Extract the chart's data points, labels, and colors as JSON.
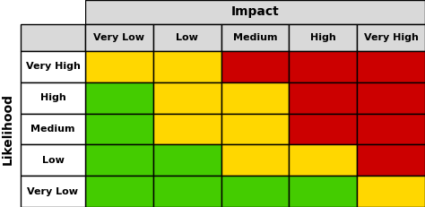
{
  "title": "Impact",
  "col_labels": [
    "Very Low",
    "Low",
    "Medium",
    "High",
    "Very High"
  ],
  "row_labels": [
    "Very High",
    "High",
    "Medium",
    "Low",
    "Very Low"
  ],
  "y_axis_label": "Likelihood",
  "cell_colors": [
    [
      "#FFD700",
      "#FFD700",
      "#CC0000",
      "#CC0000",
      "#CC0000"
    ],
    [
      "#44CC00",
      "#FFD700",
      "#FFD700",
      "#CC0000",
      "#CC0000"
    ],
    [
      "#44CC00",
      "#FFD700",
      "#FFD700",
      "#CC0000",
      "#CC0000"
    ],
    [
      "#44CC00",
      "#44CC00",
      "#FFD700",
      "#FFD700",
      "#CC0000"
    ],
    [
      "#44CC00",
      "#44CC00",
      "#44CC00",
      "#44CC00",
      "#FFD700"
    ]
  ],
  "header_bg": "#D9D9D9",
  "row_label_bg": "#FFFFFF",
  "title_fontsize": 10,
  "col_label_fontsize": 8,
  "row_label_fontsize": 8,
  "y_label_fontsize": 10,
  "cell_edge_color": "#000000",
  "cell_edge_width": 1.0,
  "fig_width": 4.74,
  "fig_height": 2.31,
  "dpi": 100
}
